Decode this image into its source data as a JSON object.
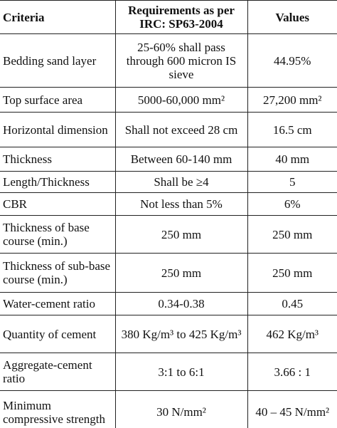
{
  "table": {
    "header": [
      "Criteria",
      "Requirements as per IRC: SP63-2004",
      "Values"
    ],
    "rows": [
      [
        "Bedding sand layer",
        "25-60% shall pass through 600 micron IS sieve",
        "44.95%"
      ],
      [
        "Top surface area",
        "5000-60,000 mm²",
        "27,200 mm²"
      ],
      [
        "Horizontal dimension",
        "Shall not exceed 28 cm",
        "16.5 cm"
      ],
      [
        "Thickness",
        "Between 60-140 mm",
        "40 mm"
      ],
      [
        "Length/Thickness",
        "Shall be ≥4",
        "5"
      ],
      [
        "CBR",
        "Not less than 5%",
        "6%"
      ],
      [
        "Thickness of base course (min.)",
        "250 mm",
        "250 mm"
      ],
      [
        "Thickness of sub-base course (min.)",
        "250 mm",
        "250 mm"
      ],
      [
        "Water-cement ratio",
        "0.34-0.38",
        "0.45"
      ],
      [
        "Quantity of cement",
        "380 Kg/m³ to 425 Kg/m³",
        "462 Kg/m³"
      ],
      [
        "Aggregate-cement ratio",
        "3:1 to 6:1",
        "3.66 : 1"
      ],
      [
        "Minimum compressive strength",
        "30 N/mm²",
        "40 – 45 N/mm²"
      ]
    ]
  }
}
